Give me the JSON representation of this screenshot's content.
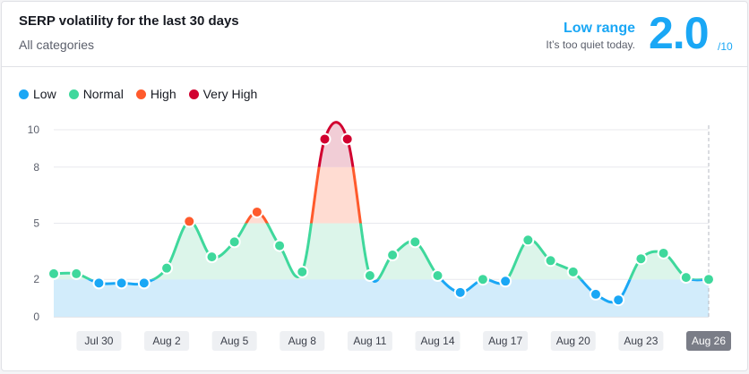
{
  "header": {
    "title": "SERP volatility for the last 30 days",
    "subtitle": "All categories",
    "range_label": "Low range",
    "range_description": "It’s too quiet today.",
    "score": "2.0",
    "score_scale": "/10"
  },
  "legend": [
    {
      "label": "Low",
      "color": "#1aa7f5"
    },
    {
      "label": "Normal",
      "color": "#3fd89c"
    },
    {
      "label": "High",
      "color": "#ff5a2c"
    },
    {
      "label": "Very High",
      "color": "#d1002f"
    }
  ],
  "chart_data": {
    "type": "area",
    "title": "SERP volatility for the last 30 days",
    "ylim": [
      0,
      10
    ],
    "yticks": [
      0,
      2,
      5,
      8,
      10
    ],
    "x": [
      "Jul 28",
      "Jul 29",
      "Jul 30",
      "Jul 31",
      "Aug 1",
      "Aug 2",
      "Aug 3",
      "Aug 4",
      "Aug 5",
      "Aug 6",
      "Aug 7",
      "Aug 8",
      "Aug 9",
      "Aug 10",
      "Aug 11",
      "Aug 12",
      "Aug 13",
      "Aug 14",
      "Aug 15",
      "Aug 16",
      "Aug 17",
      "Aug 18",
      "Aug 19",
      "Aug 20",
      "Aug 21",
      "Aug 22",
      "Aug 23",
      "Aug 24",
      "Aug 25",
      "Aug 26"
    ],
    "values": [
      2.3,
      2.3,
      1.8,
      1.8,
      1.8,
      2.6,
      5.1,
      3.2,
      4.0,
      5.6,
      3.8,
      2.4,
      9.5,
      9.5,
      2.2,
      3.3,
      4.0,
      2.2,
      1.3,
      2.0,
      1.9,
      4.1,
      3.0,
      2.4,
      1.2,
      0.9,
      3.1,
      3.4,
      2.1,
      2.0
    ],
    "xtick_labels": [
      "Jul 30",
      "Aug 2",
      "Aug 5",
      "Aug 8",
      "Aug 11",
      "Aug 14",
      "Aug 17",
      "Aug 20",
      "Aug 23",
      "Aug 26"
    ],
    "selected_label": "Aug 26",
    "bands": [
      {
        "name": "Low",
        "from": 0,
        "to": 2,
        "line": "#1aa7f5",
        "fill": "#d2ecfb"
      },
      {
        "name": "Normal",
        "from": 2,
        "to": 5,
        "line": "#3fd89c",
        "fill": "#dcf5ea"
      },
      {
        "name": "High",
        "from": 5,
        "to": 8,
        "line": "#ff5a2c",
        "fill": "#ffdcd2"
      },
      {
        "name": "Very High",
        "from": 8,
        "to": 11,
        "line": "#d1002f",
        "fill": "#f1cdd6"
      }
    ]
  }
}
